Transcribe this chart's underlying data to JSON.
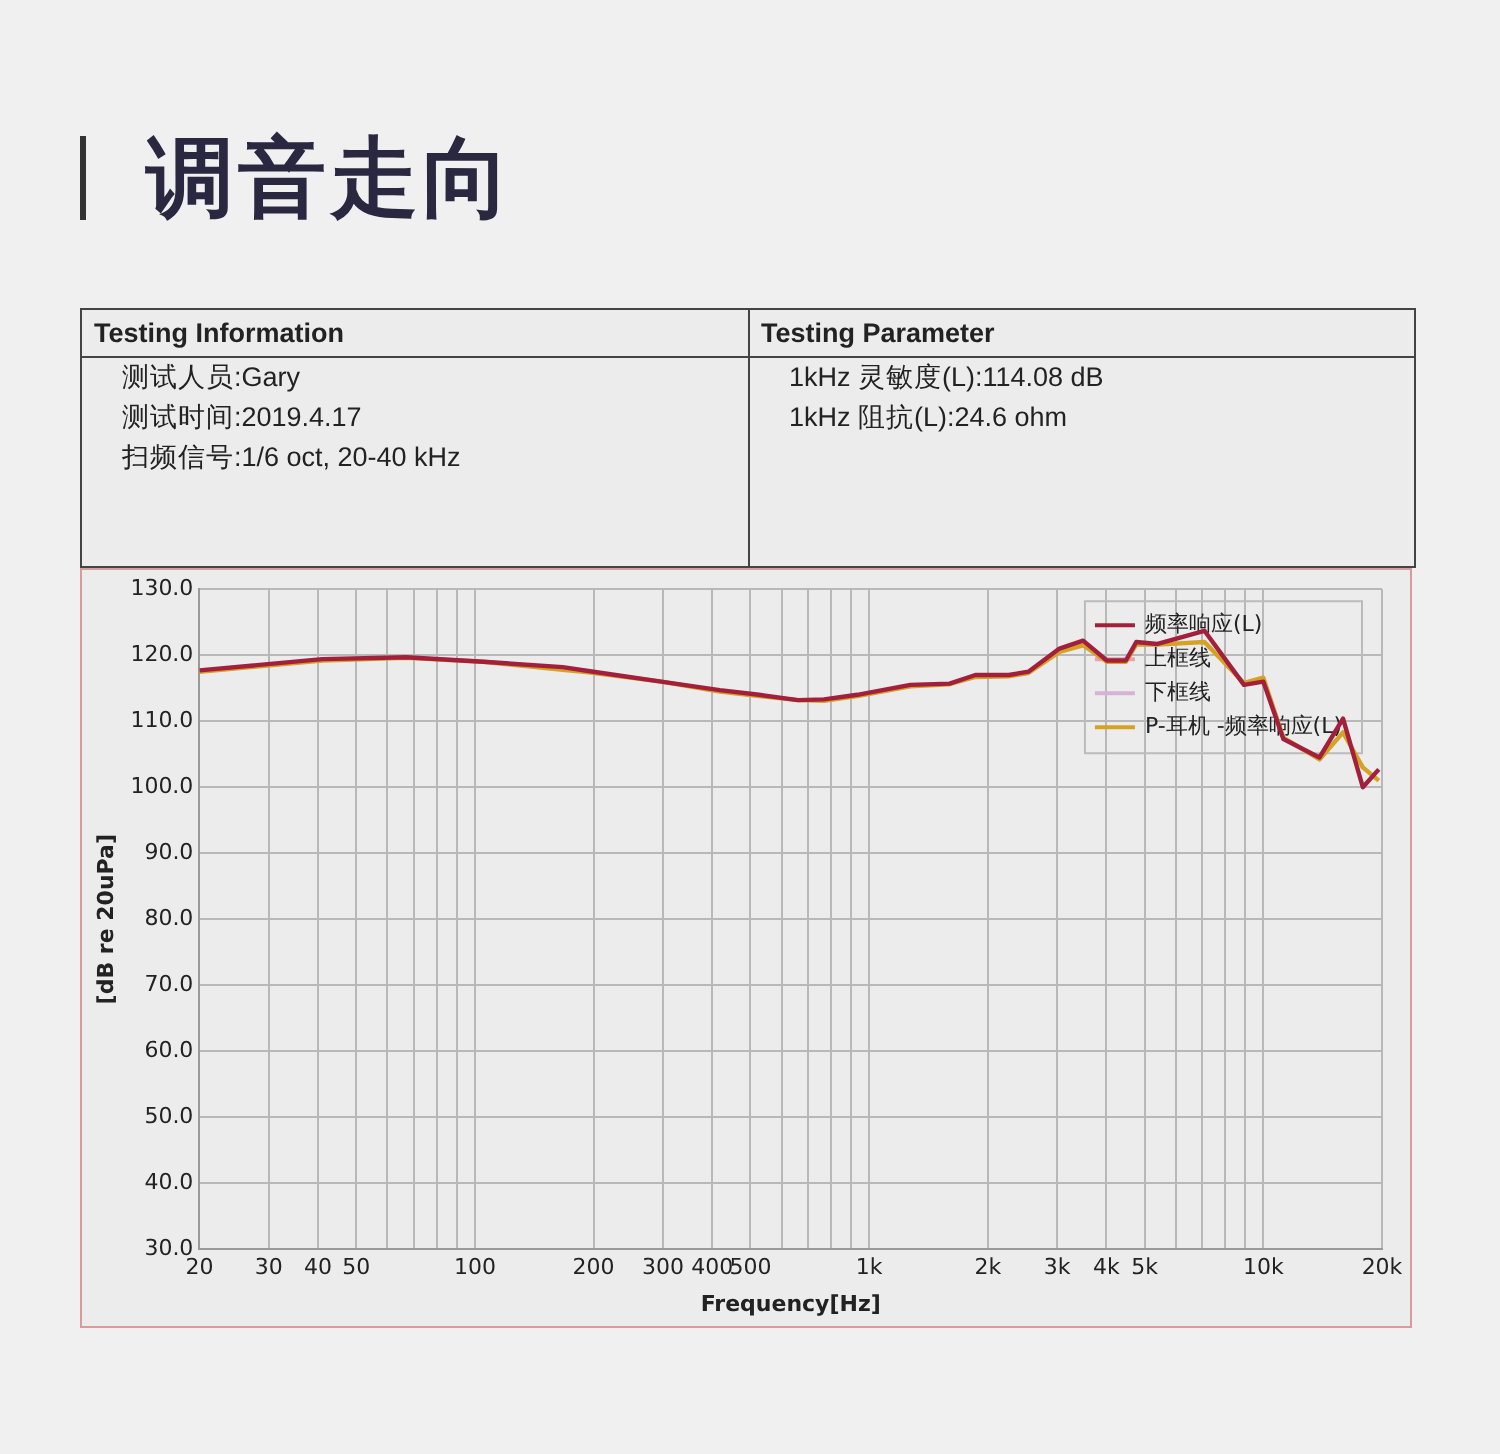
{
  "chart_data": {
    "type": "line",
    "title": "调音走向",
    "xlabel": "Frequency[Hz]",
    "ylabel": "[dB re 20uPa]",
    "annotations": [
      "Testing Information",
      "测试人员:Gary",
      "测试时间:2019.4.17",
      "扫频信号:1/6 oct, 20-40 kHz",
      "Testing Parameter",
      "1kHz 灵敏度(L):114.08 dB",
      "1kHz 阻抗(L):24.6 ohm"
    ],
    "log": "x",
    "grid": true,
    "legend": "top right",
    "marker": "none",
    "line_style": "solid",
    "x": [
      20,
      41,
      67,
      105,
      167,
      194,
      297,
      418,
      526,
      660,
      768,
      933,
      1272,
      1600,
      1860,
      2260,
      2535,
      3040,
      3490,
      4010,
      4480,
      4760,
      5390,
      7090,
      8930,
      10000,
      11240,
      13880,
      15930,
      17880,
      19630
    ],
    "series": [
      {
        "name": "频率响应(L)",
        "color": "#a3203c",
        "values": [
          117.7,
          119.4,
          119.7,
          119,
          118.2,
          117.6,
          116,
          114.7,
          114,
          113.2,
          113.3,
          114,
          115.5,
          115.7,
          117,
          117,
          117.5,
          121,
          122.2,
          119.2,
          119.2,
          122,
          121.7,
          123.7,
          115.5,
          116,
          107.3,
          104.5,
          110.4,
          100,
          102.7
        ]
      },
      {
        "name": "上框线",
        "color": "#e6a3b4",
        "values": [
          null,
          null,
          null,
          null,
          null,
          null,
          null,
          null,
          null,
          null,
          null,
          null,
          null,
          null,
          null,
          null,
          null,
          null,
          null,
          null,
          null,
          null,
          null,
          null,
          null,
          null,
          null,
          null,
          null,
          null,
          null
        ]
      },
      {
        "name": "下框线",
        "color": "#d6b3d6",
        "values": [
          null,
          null,
          null,
          null,
          null,
          null,
          null,
          null,
          null,
          null,
          null,
          null,
          null,
          null,
          null,
          null,
          null,
          null,
          null,
          null,
          null,
          null,
          null,
          null,
          null,
          null,
          null,
          null,
          null,
          null,
          null
        ]
      },
      {
        "name": "P-耳机 -频率响应(L)",
        "color": "#d4a224",
        "values": [
          117.5,
          119.2,
          119.6,
          119,
          117.8,
          117.4,
          116,
          114.5,
          113.8,
          113.2,
          113.1,
          113.8,
          115.3,
          115.6,
          116.7,
          116.8,
          117.3,
          120.5,
          121.5,
          119,
          119,
          121.6,
          121.6,
          122,
          115.8,
          116.6,
          107.5,
          104.2,
          108.3,
          103,
          101
        ]
      }
    ],
    "xlim": [
      20,
      20000
    ],
    "ylim": [
      30,
      130
    ],
    "xticks": [
      20,
      30,
      40,
      50,
      {
        "value": 60,
        "label": null
      },
      {
        "value": 70,
        "label": null
      },
      {
        "value": 80,
        "label": null
      },
      {
        "value": 90,
        "label": null
      },
      100,
      200,
      300,
      400,
      500,
      {
        "value": 600,
        "label": null
      },
      {
        "value": 700,
        "label": null
      },
      {
        "value": 800,
        "label": null
      },
      {
        "value": 900,
        "label": null
      },
      {
        "value": 1000,
        "label": "1k"
      },
      {
        "value": 2000,
        "label": "2k"
      },
      {
        "value": 3000,
        "label": "3k"
      },
      {
        "value": 4000,
        "label": "4k"
      },
      {
        "value": 5000,
        "label": "5k"
      },
      {
        "value": 6000,
        "label": null
      },
      {
        "value": 7000,
        "label": null
      },
      {
        "value": 8000,
        "label": null
      },
      {
        "value": 9000,
        "label": null
      },
      {
        "value": 10000,
        "label": "10k"
      },
      {
        "value": 20000,
        "label": "20k"
      }
    ],
    "yticks": [
      {
        "value": 30,
        "label": "30.0"
      },
      {
        "value": 40,
        "label": "40.0"
      },
      {
        "value": 50,
        "label": "50.0"
      },
      {
        "value": 60,
        "label": "60.0"
      },
      {
        "value": 70,
        "label": "70.0"
      },
      {
        "value": 80,
        "label": "80.0"
      },
      {
        "value": 90,
        "label": "90.0"
      },
      {
        "value": 100,
        "label": "100.0"
      },
      {
        "value": 110,
        "label": "110.0"
      },
      {
        "value": 120,
        "label": "120.0"
      },
      {
        "value": 130,
        "label": "130.0"
      }
    ]
  }
}
